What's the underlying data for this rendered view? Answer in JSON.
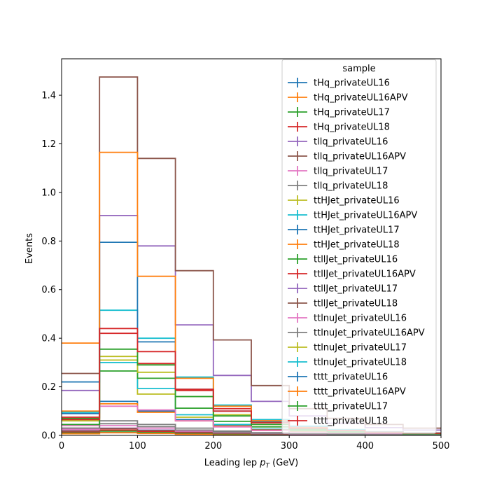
{
  "chart_data": {
    "type": "histogram",
    "xlabel": "Leading lep",
    "xlabel_var": "p",
    "xlabel_sub": "T",
    "xlabel_unit": " (GeV)",
    "ylabel": "Events",
    "xlim": [
      0,
      500
    ],
    "ylim": [
      0,
      1.55
    ],
    "xticks": [
      0,
      100,
      200,
      300,
      400,
      500
    ],
    "yticks": [
      0.0,
      0.2,
      0.4,
      0.6,
      0.8,
      1.0,
      1.2,
      1.4
    ],
    "ytick_labels": [
      "0.0",
      "0.2",
      "0.4",
      "0.6",
      "0.8",
      "1.0",
      "1.2",
      "1.4"
    ],
    "bin_edges": [
      0,
      50,
      100,
      150,
      200,
      250,
      300,
      350,
      400,
      450,
      500
    ],
    "legend": {
      "title": "sample",
      "position": "upper right"
    },
    "series": [
      {
        "name": "tHq_privateUL16",
        "color": "#1f77b4",
        "values": [
          0.008,
          0.012,
          0.009,
          0.006,
          0.004,
          0.003,
          0.002,
          0.001,
          0.001,
          0.001
        ]
      },
      {
        "name": "tHq_privateUL16APV",
        "color": "#ff7f0e",
        "values": [
          0.007,
          0.011,
          0.008,
          0.005,
          0.004,
          0.003,
          0.002,
          0.001,
          0.001,
          0.001
        ]
      },
      {
        "name": "tHq_privateUL17",
        "color": "#2ca02c",
        "values": [
          0.012,
          0.018,
          0.014,
          0.009,
          0.006,
          0.004,
          0.003,
          0.002,
          0.001,
          0.001
        ]
      },
      {
        "name": "tHq_privateUL18",
        "color": "#d62728",
        "values": [
          0.015,
          0.022,
          0.017,
          0.011,
          0.008,
          0.005,
          0.003,
          0.002,
          0.002,
          0.001
        ]
      },
      {
        "name": "tllq_privateUL16",
        "color": "#9467bd",
        "values": [
          0.02,
          0.03,
          0.022,
          0.014,
          0.009,
          0.006,
          0.004,
          0.003,
          0.002,
          0.001
        ]
      },
      {
        "name": "tllq_privateUL16APV",
        "color": "#8c564b",
        "values": [
          0.018,
          0.028,
          0.02,
          0.013,
          0.008,
          0.005,
          0.004,
          0.002,
          0.002,
          0.001
        ]
      },
      {
        "name": "tllq_privateUL17",
        "color": "#e377c2",
        "values": [
          0.025,
          0.04,
          0.03,
          0.018,
          0.012,
          0.008,
          0.005,
          0.003,
          0.002,
          0.002
        ]
      },
      {
        "name": "tllq_privateUL18",
        "color": "#7f7f7f",
        "values": [
          0.03,
          0.048,
          0.036,
          0.022,
          0.014,
          0.009,
          0.006,
          0.004,
          0.003,
          0.002
        ]
      },
      {
        "name": "ttHJet_privateUL16",
        "color": "#bcbd22",
        "values": [
          0.06,
          0.31,
          0.17,
          0.075,
          0.04,
          0.022,
          0.014,
          0.009,
          0.006,
          0.004
        ]
      },
      {
        "name": "ttHJet_privateUL16APV",
        "color": "#17becf",
        "values": [
          0.07,
          0.3,
          0.193,
          0.085,
          0.045,
          0.025,
          0.015,
          0.01,
          0.007,
          0.005
        ]
      },
      {
        "name": "ttHJet_privateUL17",
        "color": "#1f77b4",
        "values": [
          0.09,
          0.14,
          0.1,
          0.065,
          0.04,
          0.024,
          0.015,
          0.01,
          0.007,
          0.005
        ]
      },
      {
        "name": "ttHJet_privateUL18",
        "color": "#ff7f0e",
        "values": [
          0.1,
          0.13,
          0.095,
          0.06,
          0.038,
          0.022,
          0.014,
          0.009,
          0.006,
          0.004
        ]
      },
      {
        "name": "ttllJet_privateUL16",
        "color": "#2ca02c",
        "values": [
          0.07,
          0.265,
          0.235,
          0.112,
          0.058,
          0.035,
          0.02,
          0.012,
          0.008,
          0.006
        ]
      },
      {
        "name": "ttllJet_privateUL16APV",
        "color": "#d62728",
        "values": [
          0.075,
          0.42,
          0.296,
          0.185,
          0.11,
          0.06,
          0.035,
          0.022,
          0.015,
          0.01
        ]
      },
      {
        "name": "ttllJet_privateUL17",
        "color": "#9467bd",
        "values": [
          0.185,
          0.905,
          0.78,
          0.455,
          0.247,
          0.14,
          0.08,
          0.05,
          0.032,
          0.022
        ]
      },
      {
        "name": "ttllJet_privateUL18",
        "color": "#8c564b",
        "values": [
          0.255,
          1.475,
          1.14,
          0.678,
          0.393,
          0.205,
          0.11,
          0.07,
          0.045,
          0.03
        ]
      },
      {
        "name": "ttlnuJet_privateUL16",
        "color": "#e377c2",
        "values": [
          0.04,
          0.12,
          0.105,
          0.06,
          0.035,
          0.02,
          0.012,
          0.008,
          0.005,
          0.003
        ]
      },
      {
        "name": "ttlnuJet_privateUL16APV",
        "color": "#7f7f7f",
        "values": [
          0.03,
          0.06,
          0.045,
          0.03,
          0.018,
          0.011,
          0.007,
          0.004,
          0.003,
          0.002
        ]
      },
      {
        "name": "ttlnuJet_privateUL17",
        "color": "#bcbd22",
        "values": [
          0.065,
          0.325,
          0.26,
          0.16,
          0.085,
          0.045,
          0.025,
          0.016,
          0.01,
          0.007
        ]
      },
      {
        "name": "ttlnuJet_privateUL18",
        "color": "#17becf",
        "values": [
          0.095,
          0.515,
          0.4,
          0.24,
          0.125,
          0.065,
          0.038,
          0.024,
          0.015,
          0.01
        ]
      },
      {
        "name": "tttt_privateUL16",
        "color": "#1f77b4",
        "values": [
          0.22,
          0.795,
          0.385,
          0.19,
          0.1,
          0.055,
          0.03,
          0.02,
          0.013,
          0.009
        ]
      },
      {
        "name": "tttt_privateUL16APV",
        "color": "#ff7f0e",
        "values": [
          0.38,
          1.165,
          0.655,
          0.235,
          0.12,
          0.06,
          0.032,
          0.02,
          0.013,
          0.009
        ]
      },
      {
        "name": "tttt_privateUL17",
        "color": "#2ca02c",
        "values": [
          0.045,
          0.355,
          0.29,
          0.16,
          0.08,
          0.045,
          0.025,
          0.016,
          0.01,
          0.007
        ]
      },
      {
        "name": "tttt_privateUL18",
        "color": "#d62728",
        "values": [
          0.065,
          0.44,
          0.345,
          0.19,
          0.1,
          0.052,
          0.03,
          0.02,
          0.013,
          0.009
        ]
      }
    ]
  }
}
